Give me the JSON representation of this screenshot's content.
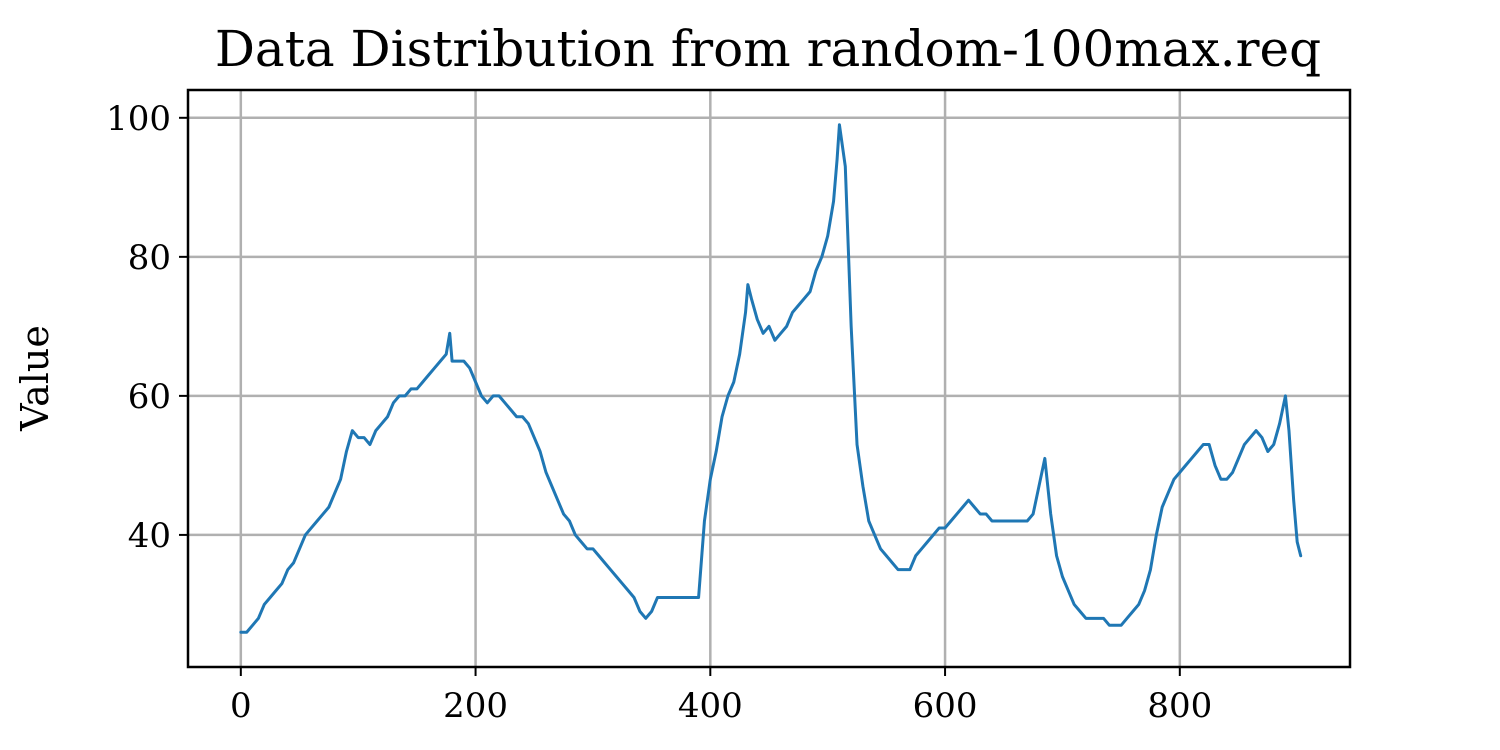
{
  "chart_data": {
    "type": "line",
    "title": "Data Distribution from random-100max.req",
    "xlabel": "",
    "ylabel": "Value",
    "xlim": [
      -45,
      945
    ],
    "ylim": [
      21,
      104
    ],
    "xticks": [
      0,
      200,
      400,
      600,
      800
    ],
    "yticks": [
      40,
      60,
      80,
      100
    ],
    "grid": true,
    "series": [
      {
        "color": "#1f77b4",
        "x": [
          0,
          5,
          10,
          15,
          20,
          25,
          30,
          35,
          40,
          45,
          50,
          55,
          60,
          65,
          70,
          75,
          80,
          85,
          90,
          95,
          100,
          105,
          110,
          115,
          120,
          125,
          130,
          135,
          140,
          145,
          150,
          155,
          160,
          165,
          170,
          175,
          178,
          180,
          185,
          190,
          195,
          200,
          205,
          210,
          215,
          220,
          225,
          230,
          235,
          240,
          245,
          250,
          255,
          260,
          265,
          270,
          275,
          280,
          285,
          290,
          295,
          300,
          305,
          310,
          315,
          320,
          325,
          330,
          335,
          340,
          345,
          350,
          355,
          360,
          365,
          370,
          375,
          380,
          385,
          390,
          395,
          400,
          405,
          410,
          415,
          420,
          425,
          430,
          432,
          435,
          440,
          445,
          450,
          455,
          460,
          465,
          470,
          475,
          480,
          485,
          490,
          495,
          500,
          505,
          508,
          510,
          515,
          520,
          525,
          530,
          535,
          540,
          545,
          550,
          555,
          560,
          565,
          570,
          575,
          580,
          585,
          590,
          595,
          600,
          605,
          610,
          615,
          620,
          625,
          630,
          635,
          640,
          645,
          650,
          655,
          660,
          665,
          670,
          675,
          680,
          685,
          690,
          695,
          700,
          705,
          710,
          715,
          720,
          725,
          730,
          735,
          740,
          745,
          750,
          755,
          760,
          765,
          770,
          775,
          780,
          785,
          790,
          795,
          800,
          805,
          810,
          815,
          820,
          825,
          830,
          835,
          840,
          845,
          850,
          855,
          860,
          865,
          870,
          875,
          880,
          885,
          890,
          893,
          897,
          900,
          903
        ],
        "y": [
          26,
          26,
          27,
          28,
          30,
          31,
          32,
          33,
          35,
          36,
          38,
          40,
          41,
          42,
          43,
          44,
          46,
          48,
          52,
          55,
          54,
          54,
          53,
          55,
          56,
          57,
          59,
          60,
          60,
          61,
          61,
          62,
          63,
          64,
          65,
          66,
          69,
          65,
          65,
          65,
          64,
          62,
          60,
          59,
          60,
          60,
          59,
          58,
          57,
          57,
          56,
          54,
          52,
          49,
          47,
          45,
          43,
          42,
          40,
          39,
          38,
          38,
          37,
          36,
          35,
          34,
          33,
          32,
          31,
          29,
          28,
          29,
          31,
          31,
          31,
          31,
          31,
          31,
          31,
          31,
          42,
          48,
          52,
          57,
          60,
          62,
          66,
          72,
          76,
          74,
          71,
          69,
          70,
          68,
          69,
          70,
          72,
          73,
          74,
          75,
          78,
          80,
          83,
          88,
          94,
          99,
          93,
          70,
          53,
          47,
          42,
          40,
          38,
          37,
          36,
          35,
          35,
          35,
          37,
          38,
          39,
          40,
          41,
          41,
          42,
          43,
          44,
          45,
          44,
          43,
          43,
          42,
          42,
          42,
          42,
          42,
          42,
          42,
          43,
          47,
          51,
          43,
          37,
          34,
          32,
          30,
          29,
          28,
          28,
          28,
          28,
          27,
          27,
          27,
          28,
          29,
          30,
          32,
          35,
          40,
          44,
          46,
          48,
          49,
          50,
          51,
          52,
          53,
          53,
          50,
          48,
          48,
          49,
          51,
          53,
          54,
          55,
          54,
          52,
          53,
          56,
          60,
          55,
          45,
          39,
          37
        ]
      }
    ]
  }
}
